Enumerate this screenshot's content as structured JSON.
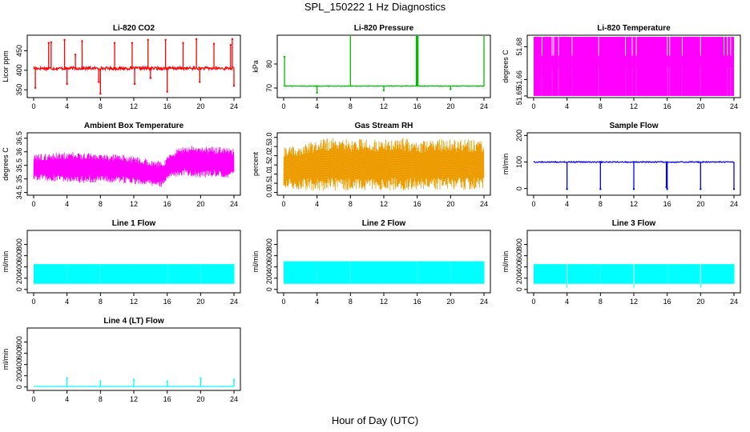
{
  "figure": {
    "title": "SPL_150222  1 Hz Diagnostics",
    "xlabel": "Hour of Day (UTC)"
  },
  "chart_data": [
    {
      "id": "co2",
      "type": "line",
      "title": "Li-820 CO2",
      "ylabel": "Licor ppm",
      "color": "#ff0000",
      "xlim": [
        0,
        24
      ],
      "ylim": [
        330,
        490
      ],
      "xticks": [
        0,
        4,
        8,
        12,
        16,
        20,
        24
      ],
      "yticks": [
        350,
        400,
        450
      ],
      "series": [
        {
          "baseline": 405,
          "noise": 4,
          "x": [
            0.2,
            1.8,
            2.1,
            3.7,
            4.0,
            5.0,
            5.8,
            7.8,
            8.0,
            9.7,
            11.8,
            12.1,
            13.7,
            14.0,
            15.8,
            16.0,
            17.9,
            19.5,
            19.9,
            21.6,
            23.6,
            23.8,
            24.0
          ],
          "y": [
            355,
            470,
            472,
            478,
            365,
            440,
            475,
            370,
            340,
            470,
            470,
            365,
            478,
            380,
            478,
            345,
            470,
            480,
            370,
            468,
            465,
            480,
            360
          ]
        }
      ]
    },
    {
      "id": "pressure",
      "type": "line",
      "title": "Li-820 Pressure",
      "ylabel": "kPa",
      "color": "#00bb00",
      "xlim": [
        0,
        24
      ],
      "ylim": [
        66,
        92
      ],
      "xticks": [
        0,
        4,
        8,
        12,
        16,
        20,
        24
      ],
      "yticks": [
        70,
        80
      ],
      "series": [
        {
          "baseline": 70.8,
          "noise": 0.15,
          "x": [
            0.1,
            4.0,
            8.0,
            12.0,
            15.9,
            16.0,
            16.1,
            20.0,
            24.0
          ],
          "y": [
            83,
            68,
            92,
            69,
            92,
            92,
            92,
            69.5,
            92
          ]
        }
      ]
    },
    {
      "id": "temperature",
      "type": "line",
      "title": "Li-820 Temperature",
      "ylabel": "degrees C",
      "color": "#ff00ff",
      "xlim": [
        0,
        24
      ],
      "ylim": [
        51.649,
        51.687
      ],
      "xticks": [
        0,
        4,
        8,
        12,
        16,
        20,
        24
      ],
      "yticks": [
        51.65,
        51.66,
        51.68
      ],
      "series": [
        {
          "baseline": 51.668,
          "band": [
            51.65,
            51.686
          ],
          "x": [
            1.0,
            2.2,
            2.4,
            3.0,
            4.6,
            7.8,
            11.0,
            11.8,
            12.3,
            16.0,
            16.3,
            17.8,
            20.0,
            22.8,
            23.2,
            23.6
          ],
          "y": [
            51.674,
            51.674,
            51.674,
            51.674,
            51.674,
            51.674,
            51.674,
            51.674,
            51.674,
            51.674,
            51.674,
            51.674,
            51.674,
            51.674,
            51.674,
            51.674
          ]
        }
      ]
    },
    {
      "id": "ambient",
      "type": "line",
      "title": "Ambient Box Temperature",
      "ylabel": "degrees C",
      "color": "#ff00ff",
      "xlim": [
        0,
        24
      ],
      "ylim": [
        34.4,
        36.7
      ],
      "xticks": [
        0,
        4,
        8,
        12,
        16,
        20,
        24
      ],
      "yticks": [
        34.5,
        35.0,
        35.5,
        36.0,
        36.5
      ],
      "series": [
        {
          "x": [
            0,
            2,
            4,
            6,
            8,
            10,
            12,
            14,
            15.5,
            16.5,
            18,
            20,
            22,
            24
          ],
          "low": [
            34.95,
            34.9,
            34.85,
            34.85,
            34.85,
            34.85,
            34.8,
            34.75,
            34.7,
            35.05,
            35.1,
            35.05,
            35.05,
            35.0
          ],
          "high": [
            35.9,
            35.95,
            36.0,
            36.0,
            35.95,
            35.9,
            35.85,
            35.7,
            35.65,
            36.0,
            36.25,
            36.2,
            36.2,
            36.15
          ]
        }
      ]
    },
    {
      "id": "rh",
      "type": "line",
      "title": "Gas Stream RH",
      "ylabel": "percent",
      "color": "#ffa500",
      "xlim": [
        0,
        24
      ],
      "ylim": [
        -0.15,
        3.25
      ],
      "xticks": [
        0,
        4,
        8,
        12,
        16,
        20,
        24
      ],
      "yticks": [
        0.0,
        0.5,
        1.0,
        1.5,
        2.0,
        2.5,
        3.0
      ],
      "series": [
        {
          "x": [
            0,
            2,
            4,
            6,
            8,
            10,
            12,
            14,
            16,
            18,
            20,
            22,
            24
          ],
          "low": [
            0.2,
            0.15,
            0.1,
            0.1,
            0.1,
            0.1,
            0.1,
            0.1,
            0.15,
            0.15,
            0.15,
            0.15,
            0.2
          ],
          "high": [
            2.5,
            2.6,
            2.9,
            3.0,
            2.9,
            2.9,
            2.9,
            3.0,
            2.8,
            2.9,
            2.9,
            2.9,
            2.8
          ]
        }
      ]
    },
    {
      "id": "sample",
      "type": "line",
      "title": "Sample Flow",
      "ylabel": "ml/min",
      "color": "#0000ff",
      "xlim": [
        0,
        24
      ],
      "ylim": [
        -25,
        210
      ],
      "xticks": [
        0,
        4,
        8,
        12,
        16,
        20,
        24
      ],
      "yticks": [
        0,
        100,
        200
      ],
      "series": [
        {
          "baseline": 100,
          "noise": 2,
          "x": [
            4.0,
            8.0,
            12.0,
            15.9,
            16.0,
            20.0,
            24.0
          ],
          "y": [
            -2,
            -2,
            -2,
            5,
            -2,
            -2,
            -2
          ]
        }
      ]
    },
    {
      "id": "line1",
      "type": "line",
      "title": "Line 1 Flow",
      "ylabel": "ml/min",
      "color": "#00ffff",
      "xlim": [
        0,
        24
      ],
      "ylim": [
        -60,
        1050
      ],
      "xticks": [
        0,
        4,
        8,
        12,
        16,
        20,
        24
      ],
      "yticks": [
        0,
        200,
        400,
        600,
        800
      ],
      "series": [
        {
          "band": [
            100,
            450
          ],
          "x": [
            4.0,
            8.0,
            12.0,
            16.0,
            20.0,
            24.0
          ],
          "y": [
            450,
            450,
            450,
            450,
            450,
            450
          ]
        }
      ]
    },
    {
      "id": "line2",
      "type": "line",
      "title": "Line 2 Flow",
      "ylabel": "ml/min",
      "color": "#00ffff",
      "xlim": [
        0,
        24
      ],
      "ylim": [
        -60,
        1050
      ],
      "xticks": [
        0,
        4,
        8,
        12,
        16,
        20,
        24
      ],
      "yticks": [
        0,
        200,
        400,
        600,
        800
      ],
      "series": [
        {
          "band": [
            100,
            500
          ],
          "x": [
            4.0,
            8.0,
            12.0,
            16.0,
            20.0,
            24.0
          ],
          "y": [
            500,
            500,
            500,
            500,
            500,
            500
          ]
        }
      ]
    },
    {
      "id": "line3",
      "type": "line",
      "title": "Line 3 Flow",
      "ylabel": "ml/min",
      "color": "#00ffff",
      "xlim": [
        0,
        24
      ],
      "ylim": [
        -60,
        1050
      ],
      "xticks": [
        0,
        4,
        8,
        12,
        16,
        20,
        24
      ],
      "yticks": [
        0,
        200,
        400,
        600,
        800
      ],
      "series": [
        {
          "band": [
            100,
            450
          ],
          "x": [
            4.0,
            8.0,
            12.0,
            16.0,
            20.0,
            24.0
          ],
          "y": [
            30,
            450,
            30,
            450,
            30,
            450
          ]
        }
      ]
    },
    {
      "id": "line4",
      "type": "line",
      "title": "Line 4 (LT) Flow",
      "ylabel": "ml/min",
      "color": "#00ffff",
      "xlim": [
        0,
        24
      ],
      "ylim": [
        -60,
        1050
      ],
      "xticks": [
        0,
        4,
        8,
        12,
        16,
        20,
        24
      ],
      "yticks": [
        0,
        200,
        400,
        600,
        800
      ],
      "series": [
        {
          "baseline": 10,
          "noise": 2,
          "x": [
            4.0,
            8.0,
            12.0,
            16.0,
            20.0,
            24.0
          ],
          "y": [
            160,
            100,
            130,
            100,
            160,
            130
          ]
        }
      ]
    }
  ]
}
